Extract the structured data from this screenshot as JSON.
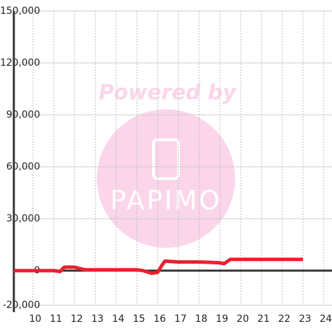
{
  "chart_data": {
    "type": "line",
    "x": [
      9.07,
      10,
      11,
      11.3,
      11.5,
      12,
      12.5,
      13,
      14,
      15,
      15.3,
      15.7,
      16,
      16.2,
      16.35,
      17,
      18,
      18.5,
      19,
      19.2,
      19.5,
      20,
      21,
      22,
      23
    ],
    "series": [
      {
        "color": "#e8202e",
        "values": [
          0,
          0,
          0,
          -500,
          2000,
          2000,
          500,
          500,
          500,
          500,
          0,
          -1500,
          -1000,
          3000,
          5500,
          5000,
          5000,
          4800,
          4500,
          4000,
          6500,
          6500,
          6500,
          6500,
          6500
        ]
      }
    ],
    "xlim": [
      9.07,
      24.4
    ],
    "xticks": [
      10,
      11,
      12,
      13,
      14,
      15,
      16,
      17,
      18,
      19,
      20,
      21,
      22,
      23,
      24
    ],
    "ylim": [
      -20000,
      150000
    ],
    "yticks": [
      {
        "value": -20000,
        "label": "-20,000"
      },
      0,
      {
        "value": 30000,
        "label": "30,000"
      },
      {
        "value": 60000,
        "label": "60,000"
      },
      {
        "value": 90000,
        "label": "90,000"
      },
      {
        "value": 120000,
        "label": "120,000"
      },
      {
        "value": 150000,
        "label": "150,000"
      }
    ],
    "grid": true,
    "watermark": {
      "top": "Powered by",
      "logo": "PAPIMO"
    }
  }
}
